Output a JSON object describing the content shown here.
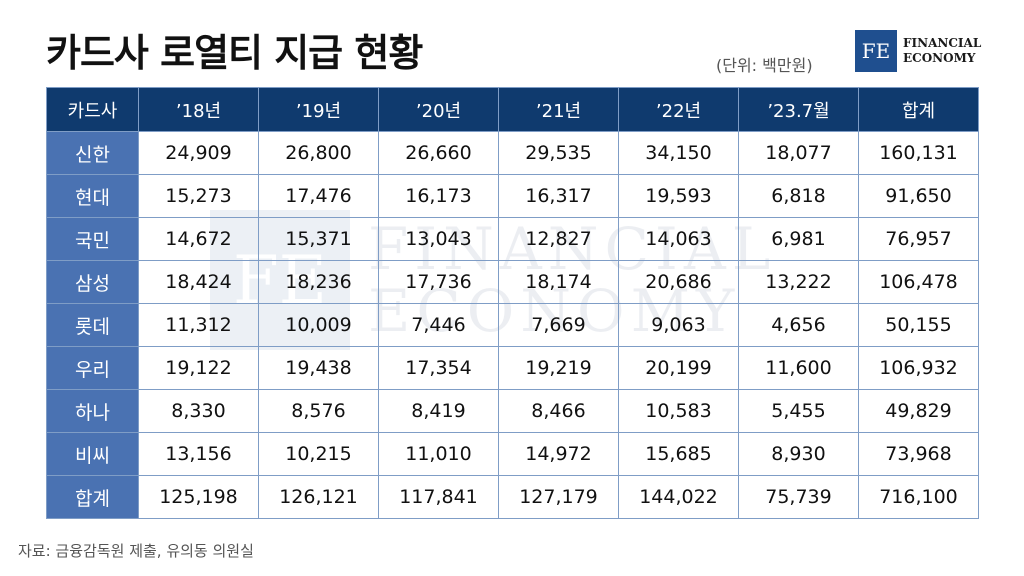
{
  "title": "카드사 로열티 지급 현황",
  "unit": "(단위: 백만원)",
  "logo": {
    "mark": "FE",
    "line1": "FINANCIAL",
    "line2": "ECONOMY"
  },
  "table": {
    "headers": [
      "카드사",
      "’18년",
      "’19년",
      "’20년",
      "’21년",
      "’22년",
      "’23.7월",
      "합계"
    ],
    "rows": [
      {
        "label": "신한",
        "values": [
          "24,909",
          "26,800",
          "26,660",
          "29,535",
          "34,150",
          "18,077",
          "160,131"
        ]
      },
      {
        "label": "현대",
        "values": [
          "15,273",
          "17,476",
          "16,173",
          "16,317",
          "19,593",
          "6,818",
          "91,650"
        ]
      },
      {
        "label": "국민",
        "values": [
          "14,672",
          "15,371",
          "13,043",
          "12,827",
          "14,063",
          "6,981",
          "76,957"
        ]
      },
      {
        "label": "삼성",
        "values": [
          "18,424",
          "18,236",
          "17,736",
          "18,174",
          "20,686",
          "13,222",
          "106,478"
        ]
      },
      {
        "label": "롯데",
        "values": [
          "11,312",
          "10,009",
          "7,446",
          "7,669",
          "9,063",
          "4,656",
          "50,155"
        ]
      },
      {
        "label": "우리",
        "values": [
          "19,122",
          "19,438",
          "17,354",
          "19,219",
          "20,199",
          "11,600",
          "106,932"
        ]
      },
      {
        "label": "하나",
        "values": [
          "8,330",
          "8,576",
          "8,419",
          "8,466",
          "10,583",
          "5,455",
          "49,829"
        ]
      },
      {
        "label": "비씨",
        "values": [
          "13,156",
          "10,215",
          "11,010",
          "14,972",
          "15,685",
          "8,930",
          "73,968"
        ]
      },
      {
        "label": "합계",
        "values": [
          "125,198",
          "126,121",
          "117,841",
          "127,179",
          "144,022",
          "75,739",
          "716,100"
        ]
      }
    ]
  },
  "source": "자료: 금융감독원 제출, 유의동 의원실",
  "colors": {
    "header_bg": "#0f3a6e",
    "row_label_bg": "#4a72b2",
    "border": "#7f9dc6"
  }
}
